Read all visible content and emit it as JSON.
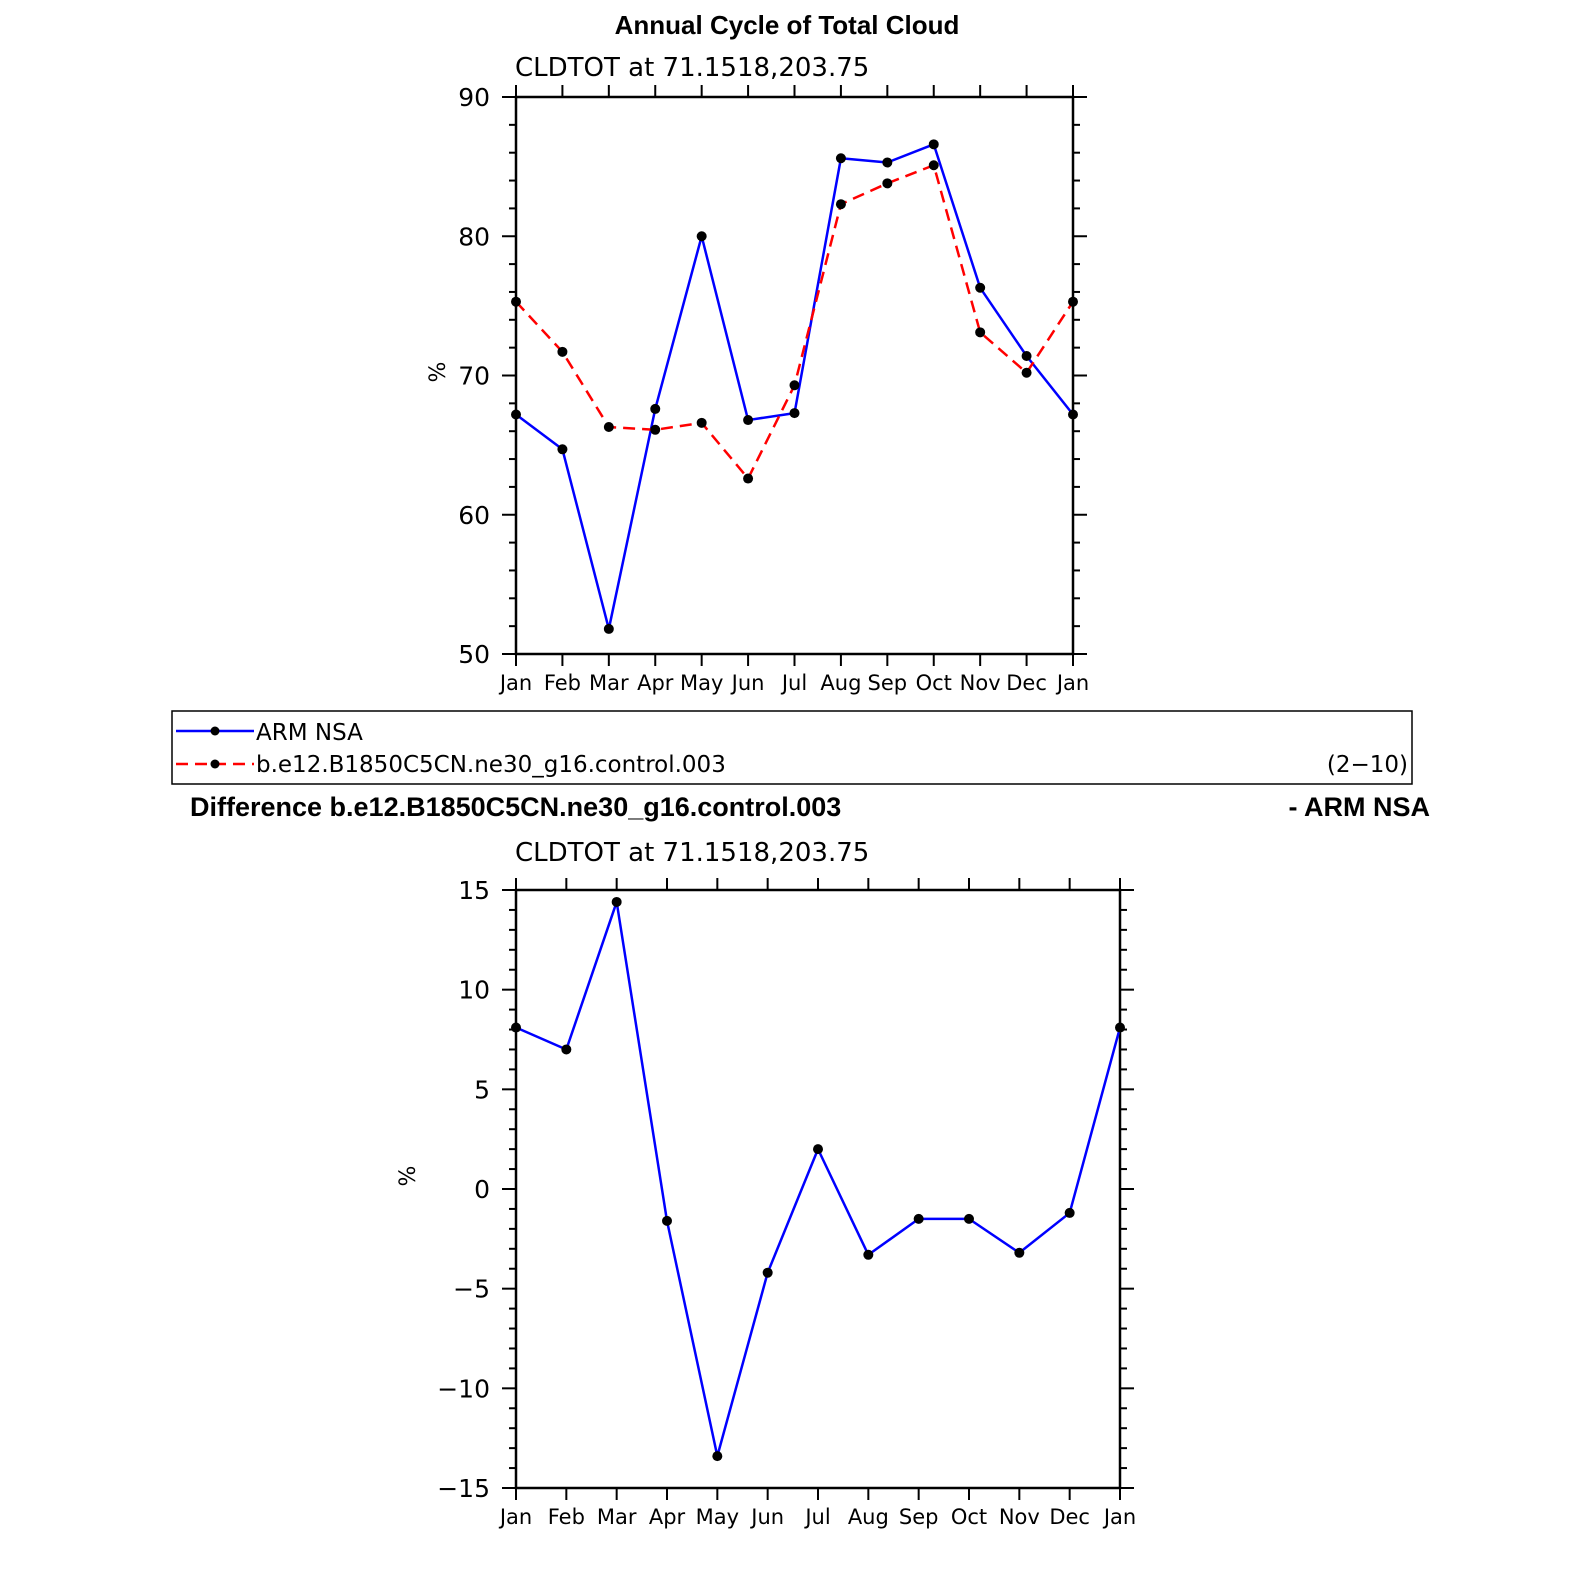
{
  "page_title": "Annual Cycle of Total Cloud",
  "diff_title_left": "Difference b.e12.B1850C5CN.ne30_g16.control.003",
  "diff_title_right": "- ARM NSA",
  "colors": {
    "obs": "#0000ff",
    "model": "#ff0000",
    "marker": "#000000",
    "axis": "#000000"
  },
  "legend": {
    "items": [
      {
        "label": "ARM NSA",
        "style": "solid",
        "color": "#0000ff"
      },
      {
        "label": "b.e12.B1850C5CN.ne30_g16.control.003",
        "style": "dashed",
        "color": "#ff0000"
      }
    ],
    "note": "(2−10)"
  },
  "chart_data": [
    {
      "type": "line",
      "title": "CLDTOT at 71.1518,203.75",
      "ylabel": "%",
      "ylim": [
        50,
        90
      ],
      "yticks": [
        50,
        60,
        70,
        80,
        90
      ],
      "categories": [
        "Jan",
        "Feb",
        "Mar",
        "Apr",
        "May",
        "Jun",
        "Jul",
        "Aug",
        "Sep",
        "Oct",
        "Nov",
        "Dec",
        "Jan"
      ],
      "series": [
        {
          "name": "ARM NSA",
          "color": "#0000ff",
          "dash": false,
          "values": [
            67.2,
            64.7,
            51.8,
            67.6,
            80.0,
            66.8,
            67.3,
            85.6,
            85.3,
            86.6,
            76.3,
            71.4,
            67.2
          ]
        },
        {
          "name": "b.e12.B1850C5CN.ne30_g16.control.003",
          "color": "#ff0000",
          "dash": true,
          "values": [
            75.3,
            71.7,
            66.3,
            66.1,
            66.6,
            62.6,
            69.3,
            82.3,
            83.8,
            85.1,
            73.1,
            70.2,
            75.3
          ]
        }
      ]
    },
    {
      "type": "line",
      "title": "CLDTOT at 71.1518,203.75",
      "ylabel": "%",
      "ylim": [
        -15,
        15
      ],
      "yticks": [
        -15,
        -10,
        -5,
        0,
        5,
        10,
        15
      ],
      "ytick_labels": [
        "−15",
        "−10",
        "−5",
        "0",
        "5",
        "10",
        "15"
      ],
      "categories": [
        "Jan",
        "Feb",
        "Mar",
        "Apr",
        "May",
        "Jun",
        "Jul",
        "Aug",
        "Sep",
        "Oct",
        "Nov",
        "Dec",
        "Jan"
      ],
      "series": [
        {
          "color": "#0000ff",
          "dash": false,
          "values": [
            8.1,
            7.0,
            14.4,
            -1.6,
            -13.4,
            -4.2,
            2.0,
            -3.3,
            -1.5,
            -1.5,
            -3.2,
            -1.2,
            8.1
          ]
        }
      ]
    }
  ]
}
